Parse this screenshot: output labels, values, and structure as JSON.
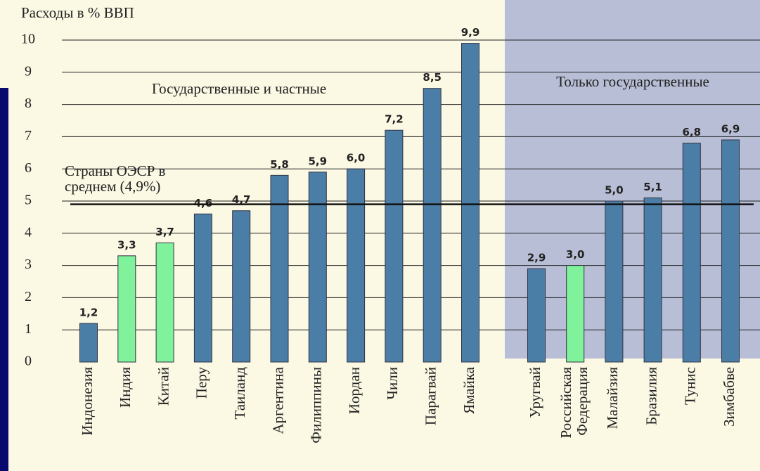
{
  "chart_data": {
    "type": "bar",
    "y_label": "Расходы в % ВВП",
    "group_labels": [
      "Государственные и частные",
      "Только государственные"
    ],
    "categories": [
      "Индонезия",
      "Индия",
      "Китай",
      "Перу",
      "Таиланд",
      "Аргентина",
      "Филиппины",
      "Иордан",
      "Чили",
      "Парагвай",
      "Ямайка",
      "Уругвай",
      "Российская Федерация",
      "Малайзия",
      "Бразилия",
      "Тунис",
      "Зимбабве"
    ],
    "values": [
      1.2,
      3.3,
      3.7,
      4.6,
      4.7,
      5.8,
      5.9,
      6.0,
      7.2,
      8.5,
      9.9,
      2.9,
      3.0,
      5.0,
      5.1,
      6.8,
      6.9
    ],
    "value_labels": [
      "1,2",
      "3,3",
      "3,7",
      "4,6",
      "4,7",
      "5,8",
      "5,9",
      "6,0",
      "7,2",
      "8,5",
      "9,9",
      "2,9",
      "3,0",
      "5,0",
      "5,1",
      "6,8",
      "6,9"
    ],
    "colors": [
      "#4b7ea6",
      "#80f29c",
      "#80f29c",
      "#4b7ea6",
      "#4b7ea6",
      "#4b7ea6",
      "#4b7ea6",
      "#4b7ea6",
      "#4b7ea6",
      "#4b7ea6",
      "#4b7ea6",
      "#4b7ea6",
      "#80f29c",
      "#4b7ea6",
      "#4b7ea6",
      "#4b7ea6",
      "#4b7ea6"
    ],
    "reference": {
      "value": 4.9,
      "label": "Страны ОЭСР в среднем (4,9%)"
    },
    "ylim": [
      0,
      10
    ],
    "yticks": [
      0,
      1,
      2,
      3,
      4,
      5,
      6,
      7,
      8,
      9,
      10
    ],
    "grid": true
  }
}
